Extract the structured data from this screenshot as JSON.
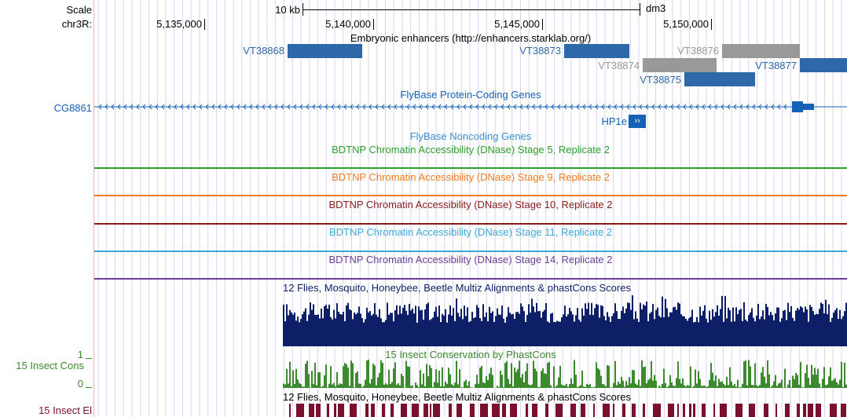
{
  "header": {
    "scale_label": "Scale",
    "chrom_label": "chr3R:",
    "scale_bar_label": "10 kb",
    "assembly": "dm3"
  },
  "ruler": {
    "ticks": [
      "5,135,000",
      "5,140,000",
      "5,145,000",
      "5,150,000"
    ]
  },
  "enhancers": {
    "title": "Embryonic enhancers (http://enhancers.starklab.org/)",
    "features": [
      {
        "name": "VT38868",
        "color": "#2f68a8"
      },
      {
        "name": "VT38873",
        "color": "#2f68a8"
      },
      {
        "name": "VT38874",
        "color": "#999999"
      },
      {
        "name": "VT38876",
        "color": "#999999"
      },
      {
        "name": "VT38877",
        "color": "#2f68a8"
      },
      {
        "name": "VT38875",
        "color": "#2f68a8"
      }
    ]
  },
  "genes": {
    "title": "FlyBase Protein-Coding Genes",
    "gene1": "CG8861",
    "gene2": "HP1e",
    "gene_color": "#1561b8"
  },
  "noncoding": {
    "title": "FlyBase Noncoding Genes"
  },
  "dnase": [
    {
      "title": "BDTNP Chromatin Accessibility (DNase) Stage 5, Replicate 2",
      "color": "#2ca02c"
    },
    {
      "title": "BDTNP Chromatin Accessibility (DNase) Stage 9, Replicate 2",
      "color": "#f07c20"
    },
    {
      "title": "BDTNP Chromatin Accessibility (DNase) Stage 10, Replicate 2",
      "color": "#8b1a1a"
    },
    {
      "title": "BDTNP Chromatin Accessibility (DNase) Stage 11, Replicate 2",
      "color": "#3fa8d8"
    },
    {
      "title": "BDTNP Chromatin Accessibility (DNase) Stage 14, Replicate 2",
      "color": "#6a3d9a"
    }
  ],
  "multiz": {
    "title": "12 Flies, Mosquito, Honeybee, Beetle Multiz Alignments & phastCons Scores",
    "color": "#0d1f66"
  },
  "phastcons": {
    "left_label": "15 Insect Cons",
    "title": "15 Insect Conservation by PhastCons",
    "y_max": "1",
    "y_min": "0",
    "color": "#3c8a2e"
  },
  "elements": {
    "left_label": "15 Insect El",
    "title": "12 Flies, Mosquito, Honeybee, Beetle Multiz Alignments & phastCons Scores",
    "color": "#7a0f2e"
  }
}
